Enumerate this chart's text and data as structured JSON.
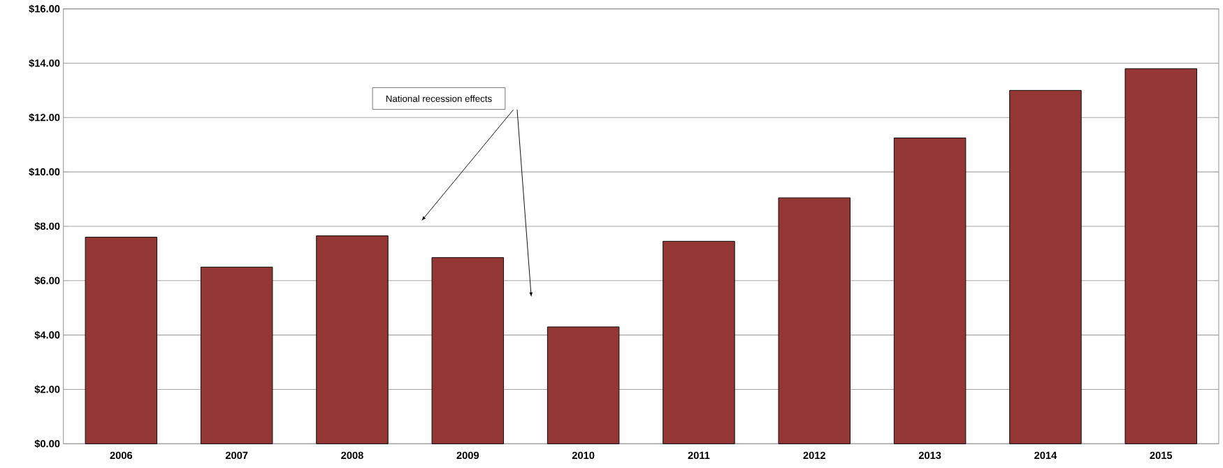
{
  "chart_data": {
    "type": "bar",
    "categories": [
      "2006",
      "2007",
      "2008",
      "2009",
      "2010",
      "2011",
      "2012",
      "2013",
      "2014",
      "2015"
    ],
    "values": [
      7.6,
      6.5,
      7.65,
      6.85,
      4.3,
      7.45,
      9.05,
      11.25,
      13.0,
      13.8
    ],
    "color": "#943634",
    "ylim": [
      0,
      16
    ],
    "yticks": [
      {
        "value": 0,
        "label": "$0.00"
      },
      {
        "value": 2,
        "label": "$2.00"
      },
      {
        "value": 4,
        "label": "$4.00"
      },
      {
        "value": 6,
        "label": "$6.00"
      },
      {
        "value": 8,
        "label": "$8.00"
      },
      {
        "value": 10,
        "label": "$10.00"
      },
      {
        "value": 12,
        "label": "$12.00"
      },
      {
        "value": 14,
        "label": "$14.00"
      },
      {
        "value": 16,
        "label": "$16.00"
      }
    ],
    "grid": "y",
    "annotations": [
      "National recession effects"
    ]
  }
}
